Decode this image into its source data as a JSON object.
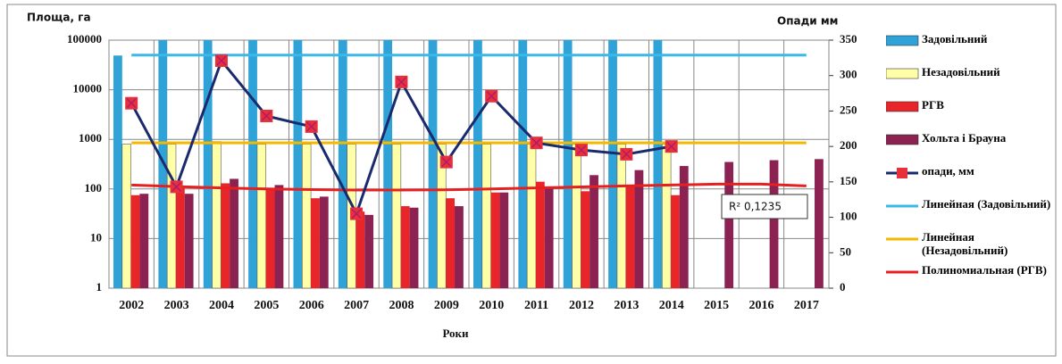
{
  "chart_data": {
    "type": "bar",
    "y_title": "Площа, га",
    "y2_title": "Опади мм",
    "x_title": "Роки",
    "categories": [
      "2002",
      "2003",
      "2004",
      "2005",
      "2006",
      "2007",
      "2008",
      "2009",
      "2010",
      "2011",
      "2012",
      "2013",
      "2014",
      "2015",
      "2016",
      "2017"
    ],
    "ylim": [
      1,
      100000
    ],
    "yticks": [
      1,
      10,
      100,
      1000,
      10000,
      100000
    ],
    "log_scale": true,
    "y2lim": [
      0,
      350
    ],
    "y2ticks": [
      0,
      50,
      100,
      150,
      200,
      250,
      300,
      350
    ],
    "grid": true,
    "legend": "right",
    "annotation": "R²    0,1235",
    "series": [
      {
        "name": "Задовільний",
        "type": "bar",
        "color": "#2fa3d8",
        "values": [
          49000,
          100000,
          100000,
          100000,
          100000,
          100000,
          100000,
          100000,
          100000,
          100000,
          100000,
          100000,
          100000,
          null,
          null,
          null
        ]
      },
      {
        "name": "Незадовільний",
        "type": "bar",
        "color": "#ffffa8",
        "values": [
          800,
          800,
          900,
          800,
          800,
          800,
          800,
          800,
          800,
          800,
          800,
          800,
          800,
          null,
          null,
          null
        ]
      },
      {
        "name": "РГВ",
        "type": "bar",
        "color": "#e8262a",
        "values": [
          75,
          110,
          130,
          100,
          65,
          35,
          45,
          65,
          85,
          140,
          90,
          110,
          75,
          null,
          null,
          null
        ]
      },
      {
        "name": "Хольта і Брауна",
        "type": "bar",
        "color": "#8b2252",
        "values": [
          80,
          80,
          160,
          120,
          70,
          30,
          42,
          45,
          85,
          110,
          190,
          240,
          290,
          350,
          380,
          400
        ]
      },
      {
        "name": "опади, мм",
        "type": "marker-line",
        "axis": "y2",
        "color": "#1a2a6c",
        "marker_color": "#e8303a",
        "values": [
          261,
          143,
          321,
          243,
          228,
          105,
          291,
          178,
          271,
          205,
          195,
          189,
          200,
          null,
          null,
          null
        ]
      },
      {
        "name": "Линейная (Задовільний)",
        "type": "line",
        "color": "#3ab8e8",
        "values": [
          50000,
          50000,
          50000,
          50000,
          50000,
          50000,
          50000,
          50000,
          50000,
          50000,
          50000,
          50000,
          50000,
          50000,
          50000,
          50000
        ]
      },
      {
        "name": "Линейная (Незадовільний)",
        "type": "line",
        "color": "#f5b800",
        "values": [
          850,
          850,
          850,
          850,
          850,
          850,
          850,
          850,
          850,
          850,
          850,
          850,
          850,
          850,
          850,
          850
        ]
      },
      {
        "name": "Полиномиальная (РГВ)",
        "type": "line",
        "color": "#e62020",
        "values": [
          120,
          112,
          105,
          100,
          97,
          95,
          95,
          96,
          100,
          105,
          110,
          115,
          120,
          125,
          125,
          115
        ]
      }
    ]
  }
}
